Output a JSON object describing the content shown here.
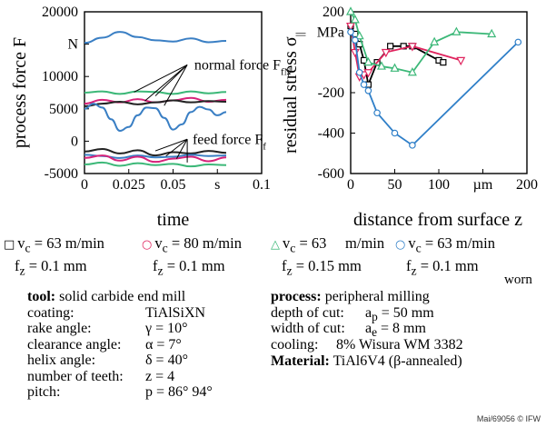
{
  "chart_data": [
    {
      "type": "line",
      "ylabel": "process force  F",
      "xlabel": "time",
      "xlim": [
        0,
        0.1
      ],
      "ylim": [
        -5000,
        20000
      ],
      "x_tick_labels": [
        "0",
        "0.025",
        "0.05",
        "s",
        "0.1"
      ],
      "y_tick_labels": [
        "20000",
        "N",
        "10000",
        "5000",
        "0",
        "-5000"
      ],
      "grid": false,
      "annotations": {
        "normal": "normal force F",
        "normal_sub": "fN",
        "feed": "feed force F",
        "feed_sub": "f"
      },
      "series": [
        {
          "group": "normal force",
          "color": "#3a7fc4",
          "x": [
            0,
            0.01,
            0.02,
            0.03,
            0.04,
            0.05,
            0.06,
            0.07,
            0.08
          ],
          "y": [
            15200,
            16000,
            16900,
            16100,
            15600,
            15400,
            15900,
            15300,
            15500
          ]
        },
        {
          "group": "normal force",
          "color": "#3cb878",
          "x": [
            0,
            0.01,
            0.02,
            0.03,
            0.04,
            0.05,
            0.06,
            0.07,
            0.08
          ],
          "y": [
            7500,
            7700,
            7300,
            7700,
            7600,
            7300,
            7700,
            7400,
            7600
          ]
        },
        {
          "group": "normal force",
          "color": "#d6237a",
          "x": [
            0,
            0.01,
            0.02,
            0.03,
            0.04,
            0.05,
            0.06,
            0.07,
            0.08
          ],
          "y": [
            5800,
            6400,
            6000,
            6500,
            6000,
            6300,
            6700,
            6100,
            6400
          ]
        },
        {
          "group": "normal force",
          "color": "#222222",
          "x": [
            0,
            0.01,
            0.02,
            0.03,
            0.04,
            0.05,
            0.06,
            0.07,
            0.08
          ],
          "y": [
            5400,
            5800,
            6100,
            5700,
            6000,
            6300,
            6000,
            6200,
            6100
          ]
        },
        {
          "group": "normal force",
          "color": "#3a7fc4",
          "x": [
            0,
            0.005,
            0.01,
            0.015,
            0.02,
            0.025,
            0.03,
            0.035,
            0.04,
            0.045,
            0.05,
            0.055,
            0.06,
            0.065,
            0.07,
            0.075,
            0.08
          ],
          "y": [
            5000,
            5800,
            5200,
            3400,
            1600,
            2200,
            4000,
            5200,
            5100,
            3600,
            1800,
            2600,
            4500,
            5300,
            4900,
            4000,
            4500
          ]
        },
        {
          "group": "feed force",
          "color": "#222222",
          "x": [
            0,
            0.01,
            0.02,
            0.03,
            0.04,
            0.05,
            0.06,
            0.07,
            0.08
          ],
          "y": [
            -1600,
            -1200,
            -1900,
            -1400,
            -2200,
            -1700,
            -1900,
            -1500,
            -1800
          ]
        },
        {
          "group": "feed force",
          "color": "#3a7fc4",
          "x": [
            0,
            0.01,
            0.02,
            0.03,
            0.04,
            0.05,
            0.06,
            0.07,
            0.08
          ],
          "y": [
            -2100,
            -2300,
            -2600,
            -2200,
            -2500,
            -2400,
            -2100,
            -2300,
            -2200
          ]
        },
        {
          "group": "feed force",
          "color": "#d6237a",
          "x": [
            0,
            0.01,
            0.02,
            0.03,
            0.04,
            0.05,
            0.06,
            0.07,
            0.08
          ],
          "y": [
            -2600,
            -2200,
            -3000,
            -2400,
            -3200,
            -2700,
            -2400,
            -3100,
            -2500
          ]
        },
        {
          "group": "feed force",
          "color": "#3cb878",
          "x": [
            0,
            0.01,
            0.02,
            0.03,
            0.04,
            0.05,
            0.06,
            0.07,
            0.08
          ],
          "y": [
            -3600,
            -3300,
            -3800,
            -3400,
            -3700,
            -3500,
            -3900,
            -3600,
            -3700
          ]
        }
      ]
    },
    {
      "type": "line",
      "ylabel": "residual stress  σ",
      "ylabel_sub": "||",
      "xlabel": "distance from surface  z",
      "xlim": [
        0,
        200
      ],
      "ylim": [
        -600,
        200
      ],
      "x_tick_labels": [
        "0",
        "50",
        "100",
        "µm",
        "200"
      ],
      "y_tick_labels": [
        "200",
        "MPa",
        "-200",
        "-400",
        "-600"
      ],
      "grid": false,
      "series": [
        {
          "name": "vc = 63 m/min fz = 0.1 mm",
          "marker": "square",
          "color": "#000000",
          "x": [
            0,
            5,
            10,
            15,
            20,
            30,
            45,
            60,
            70,
            100,
            105
          ],
          "y": [
            130,
            90,
            40,
            -40,
            -160,
            -50,
            30,
            30,
            30,
            -40,
            -50
          ]
        },
        {
          "name": "vc = 80 m/min fz = 0.1 mm",
          "marker": "circle",
          "color": "#e0245e",
          "x": [
            0,
            5,
            10,
            15,
            20,
            40,
            70,
            125
          ],
          "y": [
            130,
            0,
            -120,
            -110,
            -100,
            0,
            30,
            -40
          ]
        },
        {
          "name": "vc = 63 m/min fz = 0.15 mm",
          "marker": "triangle-up",
          "color": "#3cb878",
          "x": [
            0,
            5,
            10,
            20,
            35,
            50,
            70,
            95,
            120,
            160
          ],
          "y": [
            200,
            160,
            80,
            -50,
            -70,
            -80,
            -100,
            50,
            100,
            90
          ]
        },
        {
          "name": "vc = 63 m/min fz = 0.1 mm worn",
          "marker": "circle-open",
          "color": "#2f7fc8",
          "x": [
            0,
            5,
            10,
            15,
            20,
            30,
            50,
            70,
            190
          ],
          "y": [
            100,
            60,
            -100,
            -160,
            -190,
            -300,
            -400,
            -460,
            50
          ]
        }
      ]
    }
  ],
  "legend": [
    {
      "symbol": "□",
      "color": "#000000",
      "vc": "v",
      "vc_sub": "c",
      "vc_val": " = 63  m/min",
      "fz": "f",
      "fz_sub": "z",
      "fz_val": " = 0.1 mm",
      "extra": ""
    },
    {
      "symbol": "○",
      "color": "#e0245e",
      "vc": "v",
      "vc_sub": "c",
      "vc_val": " = 80  m/min",
      "fz": "f",
      "fz_sub": "z",
      "fz_val": " = 0.1 mm",
      "extra": ""
    },
    {
      "symbol": "△",
      "color": "#3cb878",
      "vc": "v",
      "vc_sub": "c",
      "vc_val": " = 63     m/min",
      "fz": "f",
      "fz_sub": "z",
      "fz_val": " = 0.15 mm",
      "extra": ""
    },
    {
      "symbol": "○",
      "color": "#2f7fc8",
      "vc": "v",
      "vc_sub": "c",
      "vc_val": " = 63  m/min",
      "fz": "f",
      "fz_sub": "z",
      "fz_val": " = 0.1 mm",
      "extra": "worn"
    }
  ],
  "tool": {
    "heading": "tool:",
    "heading_rest": " solid carbide end mill",
    "rows": [
      {
        "k": "coating:",
        "v": "TiAlSiXN"
      },
      {
        "k": "rake angle:",
        "v": "γ = 10°"
      },
      {
        "k": "clearance angle:",
        "v": "α = 7°"
      },
      {
        "k": "helix angle:",
        "v": "δ = 40°"
      },
      {
        "k": "number of teeth:",
        "v": "z = 4"
      },
      {
        "k": "pitch:",
        "v": "p = 86° 94°"
      }
    ]
  },
  "process": {
    "heading": "process:",
    "heading_rest": " peripheral milling",
    "depth": {
      "k": "depth of cut:",
      "sym": "a",
      "sub": "p",
      "val": " = 50 mm"
    },
    "width": {
      "k": "width of cut:",
      "sym": "a",
      "sub": "e",
      "val": " = 8 mm"
    },
    "cooling": {
      "k": "cooling:",
      "val": "8% Wisura WM 3382"
    },
    "material": {
      "heading": "Material:",
      "val": " TiAl6V4 (β-annealed)"
    }
  },
  "footer": "Mai/69056 © IFW"
}
